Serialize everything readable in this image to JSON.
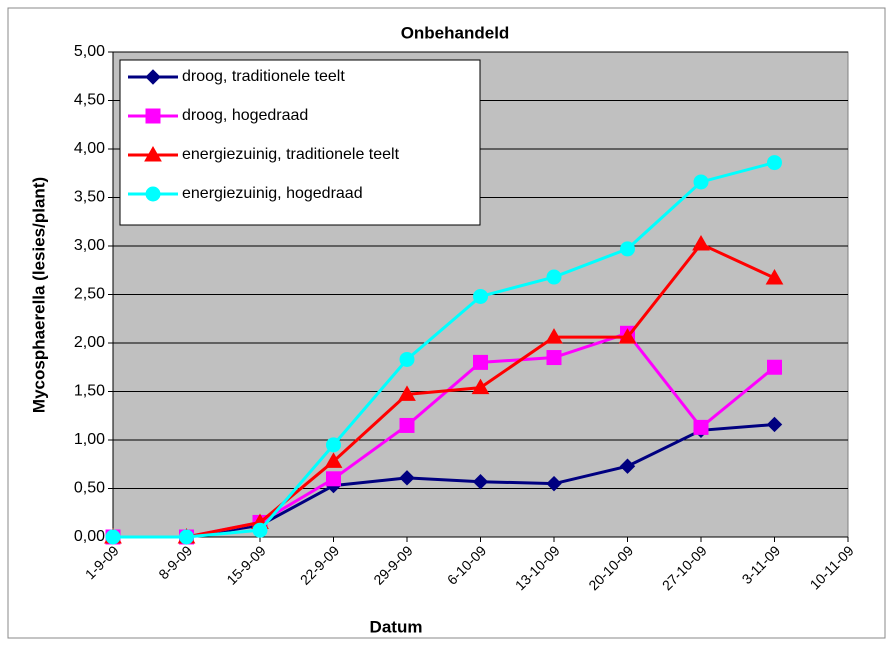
{
  "chart_data": {
    "type": "line",
    "title": "Onbehandeld",
    "x_label": "Datum",
    "y_label": "Mycosphaerella (lesies/plant)",
    "categories": [
      "1-9-09",
      "8-9-09",
      "15-9-09",
      "22-9-09",
      "29-9-09",
      "6-10-09",
      "13-10-09",
      "20-10-09",
      "27-10-09",
      "3-11-09",
      "10-11-09"
    ],
    "series": [
      {
        "name": "droog, traditionele teelt",
        "color": "#000080",
        "marker": "diamond",
        "values": [
          0,
          0,
          0.12,
          0.53,
          0.61,
          0.57,
          0.55,
          0.73,
          1.1,
          1.16,
          null
        ]
      },
      {
        "name": "droog, hogedraad",
        "color": "#ff00ff",
        "marker": "square",
        "values": [
          0,
          0,
          0.15,
          0.6,
          1.15,
          1.8,
          1.85,
          2.1,
          1.13,
          1.75,
          null
        ]
      },
      {
        "name": "energiezuinig, traditionele teelt",
        "color": "#ff0000",
        "marker": "triangle",
        "values": [
          0,
          0,
          0.15,
          0.78,
          1.47,
          1.54,
          2.06,
          2.06,
          3.02,
          2.67,
          null
        ]
      },
      {
        "name": "energiezuinig, hogedraad",
        "color": "#00ffff",
        "marker": "circle",
        "values": [
          0,
          0,
          0.07,
          0.95,
          1.83,
          2.48,
          2.68,
          2.97,
          3.66,
          3.86,
          null
        ]
      }
    ],
    "ylim": [
      0,
      5
    ],
    "yticks": [
      {
        "value": 0,
        "label": "0,00"
      },
      {
        "value": 0.5,
        "label": "0,50"
      },
      {
        "value": 1,
        "label": "1,00"
      },
      {
        "value": 1.5,
        "label": "1,50"
      },
      {
        "value": 2,
        "label": "2,00"
      },
      {
        "value": 2.5,
        "label": "2,50"
      },
      {
        "value": 3,
        "label": "3,00"
      },
      {
        "value": 3.5,
        "label": "3,50"
      },
      {
        "value": 4,
        "label": "4,00"
      },
      {
        "value": 4.5,
        "label": "4,50"
      },
      {
        "value": 5,
        "label": "5,00"
      }
    ],
    "grid": true,
    "legend": "upper left",
    "plot_background": "#c0c0c0"
  }
}
